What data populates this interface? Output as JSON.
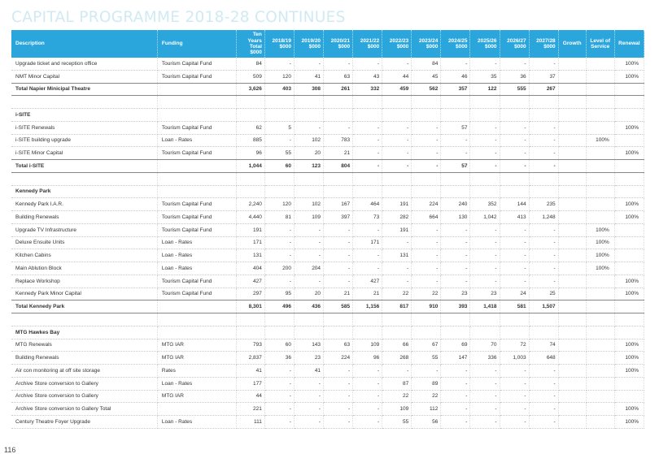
{
  "page": {
    "heading": "CAPITAL PROGRAMME 2018-28 CONTINUES",
    "page_number": "116"
  },
  "columns": {
    "description": "Description",
    "funding": "Funding",
    "ten_years": "Ten Years Total $000",
    "y1819": "2018/19 $000",
    "y1920": "2019/20 $000",
    "y2021": "2020/21 $000",
    "y2122": "2021/22 $000",
    "y2223": "2022/23 $000",
    "y2324": "2023/24 $000",
    "y2425": "2024/25 $000",
    "y2526": "2025/26 $000",
    "y2627": "2026/27 $000",
    "y2728": "2027/28 $000",
    "growth": "Growth",
    "level_of_service": "Level of Service",
    "renewal": "Renewal"
  },
  "rows": [
    {
      "kind": "item",
      "description": "Upgrade ticket and reception office",
      "funding": "Tourism Capital Fund",
      "total": "84",
      "y": [
        "-",
        "-",
        "-",
        "-",
        "-",
        "84",
        "-",
        "-",
        "-",
        "-"
      ],
      "growth": "",
      "los": "",
      "renewal": "100%"
    },
    {
      "kind": "item",
      "description": "NMT Minor Capital",
      "funding": "Tourism Capital Fund",
      "total": "509",
      "y": [
        "120",
        "41",
        "63",
        "43",
        "44",
        "45",
        "46",
        "35",
        "36",
        "37"
      ],
      "growth": "",
      "los": "",
      "renewal": "100%"
    },
    {
      "kind": "total",
      "description": "Total Napier Minicipal Theatre",
      "funding": "",
      "total": "3,626",
      "y": [
        "403",
        "308",
        "261",
        "332",
        "459",
        "562",
        "357",
        "122",
        "555",
        "267"
      ],
      "growth": "",
      "los": "",
      "renewal": ""
    },
    {
      "kind": "blank"
    },
    {
      "kind": "section",
      "description": "i-SITE"
    },
    {
      "kind": "item",
      "description": "i-SITE Renewals",
      "funding": "Tourism Capital Fund",
      "total": "62",
      "y": [
        "5",
        "-",
        "-",
        "-",
        "-",
        "-",
        "57",
        "-",
        "-",
        "-"
      ],
      "growth": "",
      "los": "",
      "renewal": "100%"
    },
    {
      "kind": "item",
      "description": "i-SITE building upgrade",
      "funding": "Loan - Rates",
      "total": "885",
      "y": [
        "-",
        "102",
        "783",
        "-",
        "-",
        "-",
        "-",
        "-",
        "-",
        "-"
      ],
      "growth": "",
      "los": "100%",
      "renewal": ""
    },
    {
      "kind": "item",
      "description": "i-SITE Minor Capital",
      "funding": "Tourism Capital Fund",
      "total": "96",
      "y": [
        "55",
        "20",
        "21",
        "-",
        "-",
        "-",
        "-",
        "-",
        "-",
        "-"
      ],
      "growth": "",
      "los": "",
      "renewal": "100%"
    },
    {
      "kind": "total",
      "description": "Total i-SITE",
      "funding": "",
      "total": "1,044",
      "y": [
        "60",
        "123",
        "804",
        "-",
        "-",
        "-",
        "57",
        "-",
        "-",
        "-"
      ],
      "growth": "",
      "los": "",
      "renewal": ""
    },
    {
      "kind": "blank"
    },
    {
      "kind": "section",
      "description": "Kennedy Park"
    },
    {
      "kind": "item",
      "description": "Kennedy Park I.A.R.",
      "funding": "Tourism Capital Fund",
      "total": "2,240",
      "y": [
        "120",
        "102",
        "167",
        "464",
        "191",
        "224",
        "240",
        "352",
        "144",
        "235"
      ],
      "growth": "",
      "los": "",
      "renewal": "100%"
    },
    {
      "kind": "item",
      "description": "Building Renewals",
      "funding": "Tourism Capital Fund",
      "total": "4,440",
      "y": [
        "81",
        "109",
        "397",
        "73",
        "282",
        "664",
        "130",
        "1,042",
        "413",
        "1,248"
      ],
      "growth": "",
      "los": "",
      "renewal": "100%"
    },
    {
      "kind": "item",
      "description": "Upgrade TV Infrastructure",
      "funding": "Tourism Capital Fund",
      "total": "191",
      "y": [
        "-",
        "-",
        "-",
        "-",
        "191",
        "-",
        "-",
        "-",
        "-",
        "-"
      ],
      "growth": "",
      "los": "100%",
      "renewal": ""
    },
    {
      "kind": "item",
      "description": "Deluxe Ensuite Units",
      "funding": "Loan - Rates",
      "total": "171",
      "y": [
        "-",
        "-",
        "-",
        "171",
        "-",
        "-",
        "-",
        "-",
        "-",
        "-"
      ],
      "growth": "",
      "los": "100%",
      "renewal": ""
    },
    {
      "kind": "item",
      "description": "Kitchen Cabins",
      "funding": "Loan - Rates",
      "total": "131",
      "y": [
        "-",
        "-",
        "-",
        "-",
        "131",
        "-",
        "-",
        "-",
        "-",
        "-"
      ],
      "growth": "",
      "los": "100%",
      "renewal": ""
    },
    {
      "kind": "item",
      "description": "Main Ablution Block",
      "funding": "Loan - Rates",
      "total": "404",
      "y": [
        "200",
        "204",
        "-",
        "-",
        "-",
        "-",
        "-",
        "-",
        "-",
        "-"
      ],
      "growth": "",
      "los": "100%",
      "renewal": ""
    },
    {
      "kind": "item",
      "description": "Replace Workshop",
      "funding": "Tourism Capital Fund",
      "total": "427",
      "y": [
        "-",
        "-",
        "-",
        "427",
        "-",
        "-",
        "-",
        "-",
        "-",
        "-"
      ],
      "growth": "",
      "los": "",
      "renewal": "100%"
    },
    {
      "kind": "item",
      "description": "Kennedy Park Minor Capital",
      "funding": "Tourism Capital Fund",
      "total": "297",
      "y": [
        "95",
        "20",
        "21",
        "21",
        "22",
        "22",
        "23",
        "23",
        "24",
        "25"
      ],
      "growth": "",
      "los": "",
      "renewal": "100%"
    },
    {
      "kind": "total",
      "description": "Total Kennedy Park",
      "funding": "",
      "total": "8,301",
      "y": [
        "496",
        "436",
        "585",
        "1,156",
        "817",
        "910",
        "393",
        "1,418",
        "581",
        "1,507"
      ],
      "growth": "",
      "los": "",
      "renewal": ""
    },
    {
      "kind": "blank"
    },
    {
      "kind": "section",
      "description": "MTG Hawkes Bay"
    },
    {
      "kind": "item",
      "description": "MTG Renewals",
      "funding": "MTG IAR",
      "total": "793",
      "y": [
        "60",
        "143",
        "63",
        "109",
        "66",
        "67",
        "69",
        "70",
        "72",
        "74"
      ],
      "growth": "",
      "los": "",
      "renewal": "100%"
    },
    {
      "kind": "item",
      "description": "Building Renewals",
      "funding": "MTG IAR",
      "total": "2,837",
      "y": [
        "36",
        "23",
        "224",
        "96",
        "268",
        "55",
        "147",
        "336",
        "1,003",
        "648"
      ],
      "growth": "",
      "los": "",
      "renewal": "100%"
    },
    {
      "kind": "item",
      "description": "Air con monitoring at off site storage",
      "funding": "Rates",
      "total": "41",
      "y": [
        "-",
        "41",
        "-",
        "-",
        "-",
        "-",
        "-",
        "-",
        "-",
        "-"
      ],
      "growth": "",
      "los": "",
      "renewal": "100%"
    },
    {
      "kind": "item",
      "description": "Archive Store conversion to Gallery",
      "funding": "Loan - Rates",
      "total": "177",
      "y": [
        "-",
        "-",
        "-",
        "-",
        "87",
        "89",
        "-",
        "-",
        "-",
        "-"
      ],
      "growth": "",
      "los": "",
      "renewal": ""
    },
    {
      "kind": "item",
      "description": "Archive Store conversion to Gallery",
      "funding": "MTG IAR",
      "total": "44",
      "y": [
        "-",
        "-",
        "-",
        "-",
        "22",
        "22",
        "-",
        "-",
        "-",
        "-"
      ],
      "growth": "",
      "los": "",
      "renewal": ""
    },
    {
      "kind": "item",
      "description": "Archive Store conversion to Gallery Total",
      "funding": "",
      "total": "221",
      "y": [
        "-",
        "-",
        "-",
        "-",
        "109",
        "112",
        "-",
        "-",
        "-",
        "-"
      ],
      "growth": "",
      "los": "",
      "renewal": "100%"
    },
    {
      "kind": "item",
      "description": "Century Theatre Foyer Upgrade",
      "funding": "Loan - Rates",
      "total": "111",
      "y": [
        "-",
        "-",
        "-",
        "-",
        "55",
        "56",
        "-",
        "-",
        "-",
        "-"
      ],
      "growth": "",
      "los": "",
      "renewal": "100%"
    }
  ]
}
